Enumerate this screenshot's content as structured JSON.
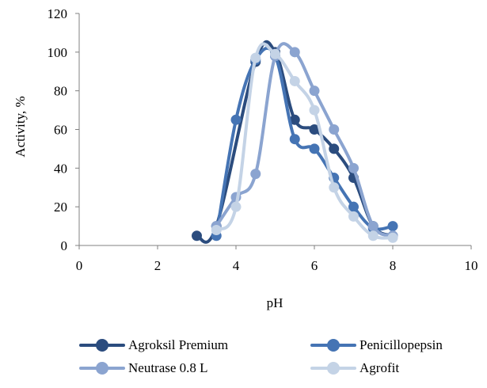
{
  "chart_data": {
    "type": "line",
    "xlabel": "pH",
    "ylabel": "Activity, %",
    "xlim": [
      0,
      10
    ],
    "ylim": [
      0,
      120
    ],
    "xticks": [
      "0",
      "2",
      "4",
      "6",
      "8",
      "10"
    ],
    "yticks": [
      "0",
      "20",
      "40",
      "60",
      "80",
      "100",
      "120"
    ],
    "grid": false,
    "legend_position": "bottom",
    "series": [
      {
        "name": "Agroksil Premium",
        "color": "#2b4c7e",
        "points": [
          [
            3,
            5
          ],
          [
            3.5,
            10
          ],
          [
            4.5,
            95
          ],
          [
            5,
            100
          ],
          [
            5.5,
            65
          ],
          [
            6,
            60
          ],
          [
            6.5,
            50
          ],
          [
            7,
            35
          ],
          [
            7.5,
            10
          ],
          [
            8,
            5
          ]
        ]
      },
      {
        "name": "Penicillopepsin",
        "color": "#4574b4",
        "points": [
          [
            3.5,
            5
          ],
          [
            4,
            65
          ],
          [
            4.5,
            96
          ],
          [
            5,
            98
          ],
          [
            5.5,
            55
          ],
          [
            6,
            50
          ],
          [
            6.5,
            35
          ],
          [
            7,
            20
          ],
          [
            7.5,
            9
          ],
          [
            8,
            10
          ]
        ]
      },
      {
        "name": "Neutrase 0.8 L",
        "color": "#8ba4d0",
        "points": [
          [
            3.5,
            10
          ],
          [
            4,
            25
          ],
          [
            4.5,
            37
          ],
          [
            5,
            98
          ],
          [
            5.5,
            100
          ],
          [
            6,
            80
          ],
          [
            6.5,
            60
          ],
          [
            7,
            40
          ],
          [
            7.5,
            10
          ],
          [
            8,
            5
          ]
        ]
      },
      {
        "name": "Agrofit",
        "color": "#c4d3e6",
        "points": [
          [
            3.5,
            8
          ],
          [
            4,
            20
          ],
          [
            4.5,
            97
          ],
          [
            5,
            99
          ],
          [
            5.5,
            85
          ],
          [
            6,
            70
          ],
          [
            6.5,
            30
          ],
          [
            7,
            15
          ],
          [
            7.5,
            5
          ],
          [
            8,
            4
          ]
        ]
      }
    ]
  }
}
